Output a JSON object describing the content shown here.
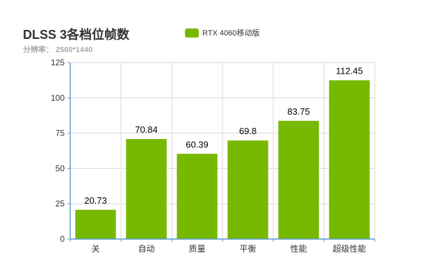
{
  "title": "DLSS 3各档位帧数",
  "subtitle": "分辨率： 2560*1440",
  "chart_data": {
    "type": "bar",
    "categories": [
      "关",
      "自动",
      "质量",
      "平衡",
      "性能",
      "超级性能"
    ],
    "series": [
      {
        "name": "RTX 4060移动版",
        "values": [
          20.73,
          70.84,
          60.39,
          69.8,
          83.75,
          112.45
        ],
        "color": "#76b900"
      }
    ],
    "value_labels": [
      "20.73",
      "70.84",
      "60.39",
      "69.8",
      "83.75",
      "112.45"
    ],
    "ylim": [
      0,
      125
    ],
    "yticks": [
      0,
      25,
      50,
      75,
      100,
      125
    ],
    "grid": true,
    "legend_position": "top",
    "axis_color": "#5b9bd5",
    "grid_color": "#d9d9d9"
  }
}
